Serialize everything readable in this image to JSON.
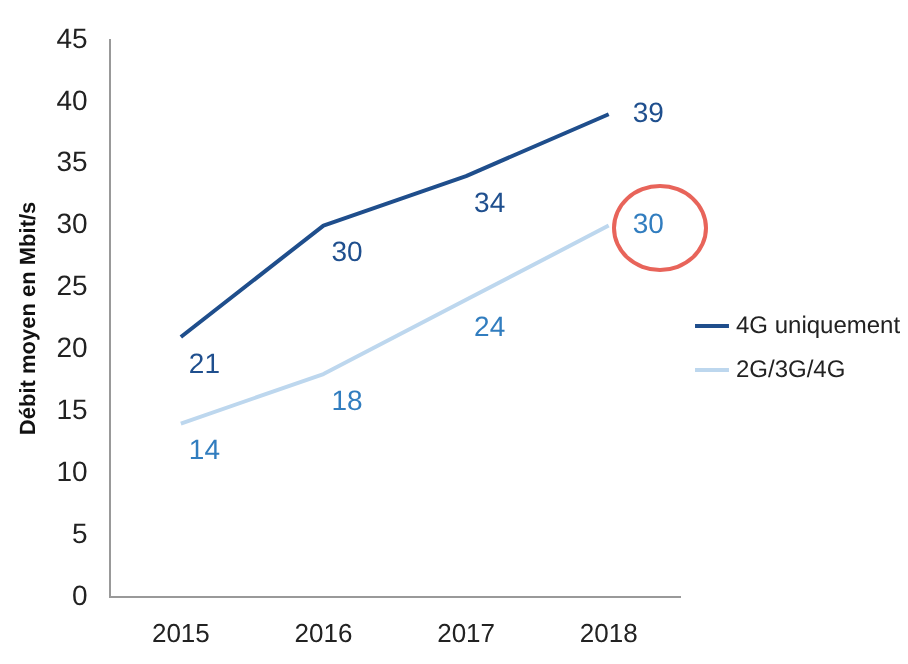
{
  "chart_data": {
    "type": "line",
    "ylabel": "Débit moyen en Mbit/s",
    "categories": [
      "2015",
      "2016",
      "2017",
      "2018"
    ],
    "series": [
      {
        "name": "4G uniquement",
        "color": "#1f4e8c",
        "values": [
          21,
          30,
          34,
          39
        ]
      },
      {
        "name": "2G/3G/4G",
        "color": "#bdd7ee",
        "values": [
          14,
          18,
          24,
          30
        ]
      }
    ],
    "ylim": [
      0,
      45
    ],
    "yticks": [
      0,
      5,
      10,
      15,
      20,
      25,
      30,
      35,
      40,
      45
    ],
    "grid": false,
    "legend": "right",
    "marker": "none",
    "line_style": "solid",
    "data_labels": true
  }
}
